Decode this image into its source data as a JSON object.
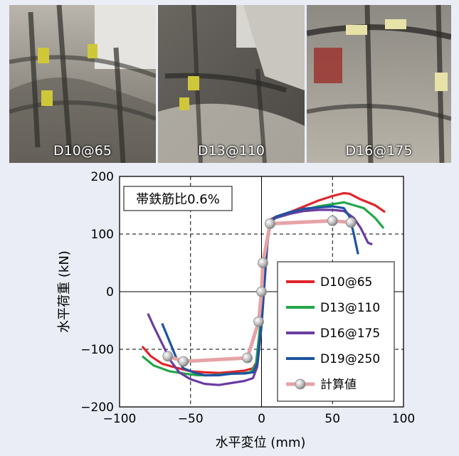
{
  "photos": [
    {
      "caption": "D10@65"
    },
    {
      "caption": "D13@110"
    },
    {
      "caption": "D16@175"
    }
  ],
  "colors": {
    "background": "#eaedf6",
    "D10@65": "#e0262b",
    "D13@110": "#22a64a",
    "D16@175": "#6a3da0",
    "D19@250": "#1e53a0",
    "calc": "#e6a3a6"
  },
  "chart_data": {
    "type": "line",
    "title": "",
    "xlabel": "水平変位 (mm)",
    "ylabel": "水平荷重 (kN)",
    "xlim": [
      -100,
      100
    ],
    "ylim": [
      -200,
      200
    ],
    "xticks": [
      -100,
      -50,
      0,
      50,
      100
    ],
    "yticks": [
      -200,
      -100,
      0,
      100,
      200
    ],
    "grid": "dashed",
    "annotation": "帯鉄筋比0.6%",
    "legend_position": "bottom-right",
    "series": [
      {
        "name": "D10@65",
        "color": "#e0262b",
        "points": [
          [
            -84,
            -95
          ],
          [
            -78,
            -112
          ],
          [
            -70,
            -125
          ],
          [
            -60,
            -132
          ],
          [
            -50,
            -138
          ],
          [
            -40,
            -140
          ],
          [
            -30,
            -141
          ],
          [
            -20,
            -139
          ],
          [
            -12,
            -137
          ],
          [
            -6,
            -133
          ],
          [
            -3,
            -120
          ],
          [
            0,
            -50
          ],
          [
            2,
            30
          ],
          [
            4,
            90
          ],
          [
            6,
            125
          ],
          [
            10,
            130
          ],
          [
            20,
            138
          ],
          [
            30,
            148
          ],
          [
            40,
            158
          ],
          [
            50,
            166
          ],
          [
            58,
            171
          ],
          [
            62,
            170
          ],
          [
            70,
            160
          ],
          [
            80,
            150
          ],
          [
            87,
            138
          ]
        ]
      },
      {
        "name": "D13@110",
        "color": "#22a64a",
        "points": [
          [
            -84,
            -112
          ],
          [
            -76,
            -128
          ],
          [
            -65,
            -138
          ],
          [
            -55,
            -142
          ],
          [
            -45,
            -145
          ],
          [
            -35,
            -145
          ],
          [
            -25,
            -143
          ],
          [
            -15,
            -142
          ],
          [
            -8,
            -140
          ],
          [
            -4,
            -128
          ],
          [
            -1,
            -60
          ],
          [
            2,
            20
          ],
          [
            4,
            80
          ],
          [
            6,
            120
          ],
          [
            10,
            128
          ],
          [
            20,
            135
          ],
          [
            30,
            142
          ],
          [
            40,
            148
          ],
          [
            50,
            152
          ],
          [
            58,
            155
          ],
          [
            65,
            150
          ],
          [
            72,
            145
          ],
          [
            80,
            128
          ],
          [
            86,
            110
          ]
        ]
      },
      {
        "name": "D16@175",
        "color": "#6a3da0",
        "points": [
          [
            -80,
            -38
          ],
          [
            -76,
            -60
          ],
          [
            -70,
            -90
          ],
          [
            -64,
            -120
          ],
          [
            -58,
            -140
          ],
          [
            -50,
            -152
          ],
          [
            -40,
            -160
          ],
          [
            -30,
            -162
          ],
          [
            -20,
            -158
          ],
          [
            -12,
            -155
          ],
          [
            -6,
            -150
          ],
          [
            -3,
            -130
          ],
          [
            0,
            -60
          ],
          [
            2,
            10
          ],
          [
            4,
            80
          ],
          [
            6,
            120
          ],
          [
            10,
            128
          ],
          [
            20,
            135
          ],
          [
            30,
            140
          ],
          [
            40,
            142
          ],
          [
            50,
            142
          ],
          [
            58,
            140
          ],
          [
            65,
            128
          ],
          [
            70,
            110
          ],
          [
            75,
            85
          ],
          [
            78,
            82
          ]
        ]
      },
      {
        "name": "D19@250",
        "color": "#1e53a0",
        "points": [
          [
            -70,
            -55
          ],
          [
            -65,
            -85
          ],
          [
            -60,
            -115
          ],
          [
            -55,
            -133
          ],
          [
            -48,
            -140
          ],
          [
            -40,
            -145
          ],
          [
            -30,
            -145
          ],
          [
            -20,
            -142
          ],
          [
            -12,
            -142
          ],
          [
            -6,
            -140
          ],
          [
            -3,
            -125
          ],
          [
            0,
            -55
          ],
          [
            2,
            20
          ],
          [
            4,
            85
          ],
          [
            6,
            122
          ],
          [
            10,
            130
          ],
          [
            20,
            138
          ],
          [
            30,
            144
          ],
          [
            40,
            146
          ],
          [
            50,
            148
          ],
          [
            58,
            145
          ],
          [
            62,
            130
          ],
          [
            65,
            100
          ],
          [
            68,
            65
          ]
        ]
      },
      {
        "name": "計算値",
        "color": "#e6a3a6",
        "points": [
          [
            -66,
            -112
          ],
          [
            -55,
            -121
          ],
          [
            -10,
            -115
          ],
          [
            -2,
            -52
          ],
          [
            0,
            0
          ],
          [
            1,
            50
          ],
          [
            6,
            118
          ],
          [
            50,
            123
          ],
          [
            63,
            120
          ]
        ]
      }
    ]
  }
}
